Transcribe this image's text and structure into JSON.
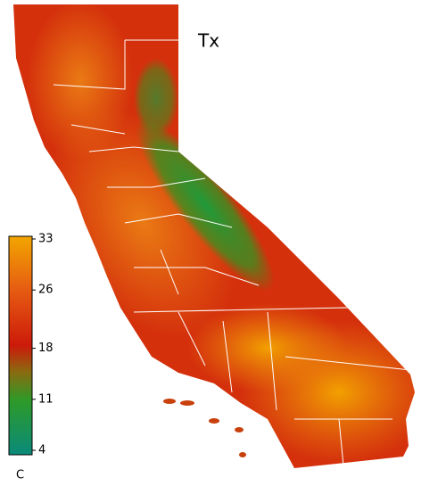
{
  "map": {
    "title": "Tx",
    "colorbar": {
      "label": "C",
      "ticks": [
        33,
        26,
        18,
        11,
        4
      ]
    }
  }
}
